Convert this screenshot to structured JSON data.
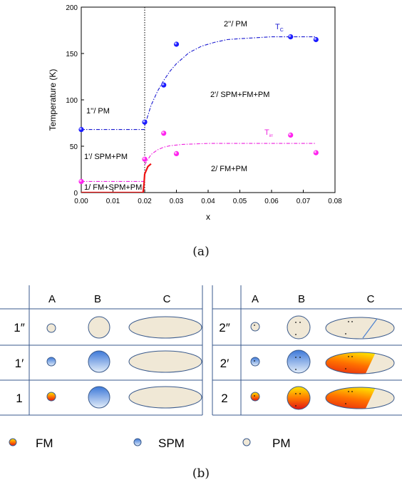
{
  "panel_a": {
    "caption": "(a)",
    "chart_data": {
      "type": "scatter",
      "xlabel": "x",
      "ylabel": "Temperature (K)",
      "xlim": [
        0,
        0.08
      ],
      "ylim": [
        0,
        200
      ],
      "x_ticks": [
        "0.00",
        "0.01",
        "0.02",
        "0.03",
        "0.04",
        "0.05",
        "0.06",
        "0.07",
        "0.08"
      ],
      "y_ticks": [
        "0",
        "50",
        "100",
        "150",
        "200"
      ],
      "vertical_line_x": 0.02,
      "series": [
        {
          "name": "TC",
          "color": "#1a1aff",
          "points": [
            [
              0.0,
              68
            ],
            [
              0.02,
              76
            ],
            [
              0.026,
              116
            ],
            [
              0.03,
              160
            ],
            [
              0.066,
              168
            ],
            [
              0.074,
              165
            ]
          ]
        },
        {
          "name": "Tirr",
          "color": "#ff22ee",
          "points": [
            [
              0.0,
              12
            ],
            [
              0.02,
              36
            ],
            [
              0.026,
              64
            ],
            [
              0.03,
              42
            ],
            [
              0.066,
              62
            ],
            [
              0.074,
              43
            ]
          ]
        }
      ],
      "fits": [
        {
          "color": "#1a1ad0",
          "points": [
            [
              0.0,
              68
            ],
            [
              0.02,
              68
            ]
          ]
        },
        {
          "color": "#1a1ad0",
          "points": [
            [
              0.02,
              72
            ],
            [
              0.022,
              94
            ],
            [
              0.024,
              109
            ],
            [
              0.026,
              121
            ],
            [
              0.028,
              131
            ],
            [
              0.03,
              139
            ],
            [
              0.034,
              151
            ],
            [
              0.038,
              158
            ],
            [
              0.042,
              162
            ],
            [
              0.046,
              165
            ],
            [
              0.05,
              166
            ],
            [
              0.055,
              167
            ],
            [
              0.06,
              168
            ],
            [
              0.074,
              168
            ]
          ]
        },
        {
          "color": "#ee22dd",
          "points": [
            [
              0.0,
              12
            ],
            [
              0.02,
              12
            ]
          ]
        },
        {
          "color": "#ee22dd",
          "points": [
            [
              0.02,
              30
            ],
            [
              0.022,
              41
            ],
            [
              0.024,
              46
            ],
            [
              0.026,
              49
            ],
            [
              0.028,
              50.5
            ],
            [
              0.032,
              52
            ],
            [
              0.04,
              53
            ],
            [
              0.05,
              53
            ],
            [
              0.074,
              53
            ]
          ]
        },
        {
          "color": "#ee1111",
          "points": [
            [
              0.0,
              0
            ],
            [
              0.0195,
              0
            ]
          ]
        },
        {
          "color": "#ee1111",
          "points": [
            [
              0.0195,
              0
            ],
            [
              0.0198,
              10
            ],
            [
              0.02,
              20
            ],
            [
              0.021,
              28
            ],
            [
              0.022,
              31
            ]
          ]
        }
      ],
      "annotations": {
        "r2pp": "2''/ PM",
        "r2p": "2'/ SPM+FM+PM",
        "r2": "2/ FM+PM",
        "r1pp": "1''/ PM",
        "r1p": "1'/ SPM+PM",
        "r1": "1/ FM+SPM+PM",
        "tc": "T",
        "tc_sub": "C",
        "tirr": "T",
        "tirr_sub": "irr"
      }
    }
  },
  "panel_b": {
    "caption": "(b)",
    "left_table": {
      "headers": [
        "A",
        "B",
        "C"
      ],
      "rows": [
        "1″",
        "1′",
        "1"
      ]
    },
    "right_table": {
      "headers": [
        "A",
        "B",
        "C"
      ],
      "rows": [
        "2″",
        "2′",
        "2"
      ]
    },
    "legend": [
      {
        "label": "FM",
        "kind": "fm"
      },
      {
        "label": "SPM",
        "kind": "spm"
      },
      {
        "label": "PM",
        "kind": "pm"
      }
    ],
    "colors": {
      "pm": "#f0e8d6",
      "spm": "#7aa6e0",
      "fm_top": "#ffe500",
      "fm_bottom": "#e81818",
      "border": "#3a5a8c"
    }
  }
}
